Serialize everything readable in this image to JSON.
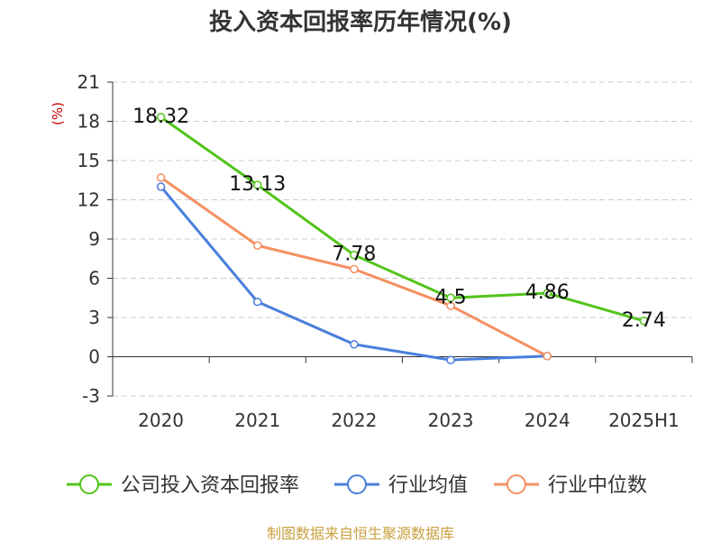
{
  "chart_data": {
    "type": "line",
    "title": "投入资本回报率历年情况(%)",
    "unit_label": "(%)",
    "categories": [
      "2020",
      "2021",
      "2022",
      "2023",
      "2024",
      "2025H1"
    ],
    "ylim": [
      -3,
      21
    ],
    "yticks": [
      -3,
      0,
      3,
      6,
      9,
      12,
      15,
      18,
      21
    ],
    "grid": true,
    "legend_position": "bottom",
    "series": [
      {
        "name": "公司投入资本回报率",
        "color": "#52c41a",
        "values": [
          18.32,
          13.13,
          7.78,
          4.5,
          4.86,
          2.74
        ],
        "labels": [
          "18.32",
          "13.13",
          "7.78",
          "4.5",
          "4.86",
          "2.74"
        ]
      },
      {
        "name": "行业均值",
        "color": "#4a7fdc",
        "values": [
          13.0,
          4.2,
          0.95,
          -0.25,
          0.05,
          null
        ]
      },
      {
        "name": "行业中位数",
        "color": "#f59062",
        "values": [
          13.7,
          8.5,
          6.7,
          3.9,
          0.05,
          null
        ]
      }
    ],
    "source": "制图数据来自恒生聚源数据库"
  }
}
